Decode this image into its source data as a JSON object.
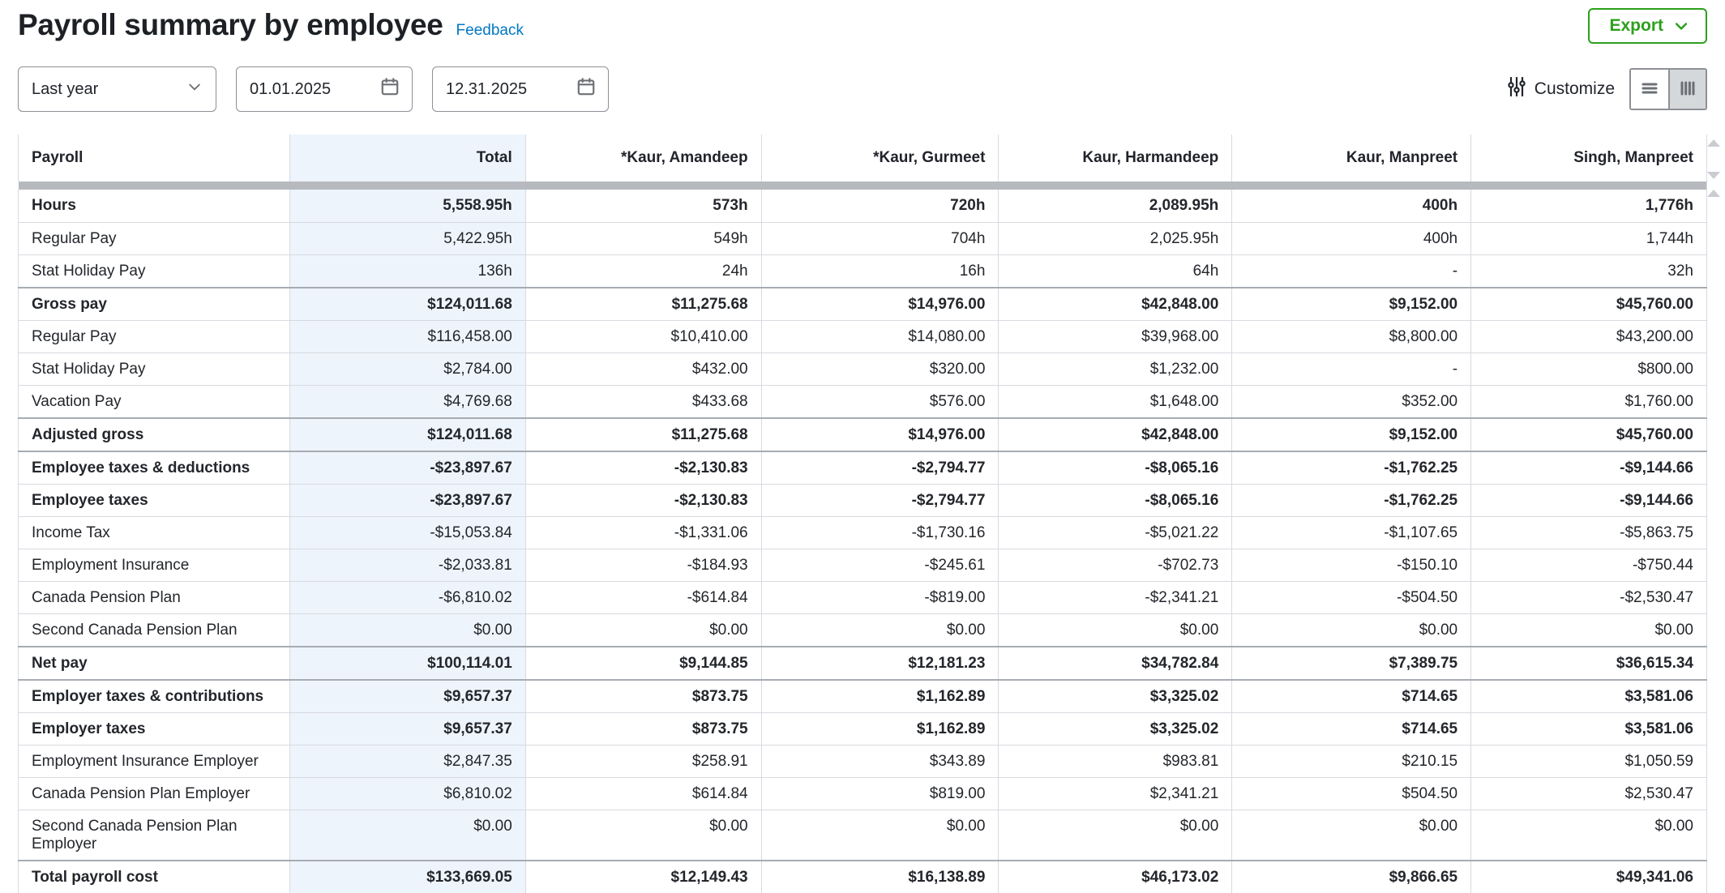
{
  "header": {
    "title": "Payroll summary by employee",
    "feedback": "Feedback",
    "export": "Export"
  },
  "filters": {
    "date_range": "Last year",
    "start_date": "01.01.2025",
    "end_date": "12.31.2025",
    "customize": "Customize"
  },
  "colors": {
    "accent_green": "#2ca01c",
    "link_blue": "#0077c5",
    "total_column_bg": "#eef4fc",
    "section_border": "#a7acb2",
    "row_border": "#d7dae0"
  },
  "table": {
    "row_header": "Payroll",
    "columns": [
      "Total",
      "*Kaur, Amandeep",
      "*Kaur, Gurmeet",
      "Kaur, Harmandeep",
      "Kaur, Manpreet",
      "Singh, Manpreet"
    ],
    "rows": [
      {
        "label": "Hours",
        "emphasis": true,
        "section_break": false,
        "values": [
          "5,558.95h",
          "573h",
          "720h",
          "2,089.95h",
          "400h",
          "1,776h"
        ]
      },
      {
        "label": "Regular Pay",
        "emphasis": false,
        "section_break": false,
        "values": [
          "5,422.95h",
          "549h",
          "704h",
          "2,025.95h",
          "400h",
          "1,744h"
        ]
      },
      {
        "label": "Stat Holiday Pay",
        "emphasis": false,
        "section_break": false,
        "values": [
          "136h",
          "24h",
          "16h",
          "64h",
          "-",
          "32h"
        ]
      },
      {
        "label": "Gross pay",
        "emphasis": true,
        "section_break": true,
        "values": [
          "$124,011.68",
          "$11,275.68",
          "$14,976.00",
          "$42,848.00",
          "$9,152.00",
          "$45,760.00"
        ]
      },
      {
        "label": "Regular Pay",
        "emphasis": false,
        "section_break": false,
        "values": [
          "$116,458.00",
          "$10,410.00",
          "$14,080.00",
          "$39,968.00",
          "$8,800.00",
          "$43,200.00"
        ]
      },
      {
        "label": "Stat Holiday Pay",
        "emphasis": false,
        "section_break": false,
        "values": [
          "$2,784.00",
          "$432.00",
          "$320.00",
          "$1,232.00",
          "-",
          "$800.00"
        ]
      },
      {
        "label": "Vacation Pay",
        "emphasis": false,
        "section_break": false,
        "values": [
          "$4,769.68",
          "$433.68",
          "$576.00",
          "$1,648.00",
          "$352.00",
          "$1,760.00"
        ]
      },
      {
        "label": "Adjusted gross",
        "emphasis": true,
        "section_break": true,
        "values": [
          "$124,011.68",
          "$11,275.68",
          "$14,976.00",
          "$42,848.00",
          "$9,152.00",
          "$45,760.00"
        ]
      },
      {
        "label": "Employee taxes & deductions",
        "emphasis": true,
        "section_break": true,
        "values": [
          "-$23,897.67",
          "-$2,130.83",
          "-$2,794.77",
          "-$8,065.16",
          "-$1,762.25",
          "-$9,144.66"
        ]
      },
      {
        "label": "Employee taxes",
        "emphasis": true,
        "section_break": false,
        "values": [
          "-$23,897.67",
          "-$2,130.83",
          "-$2,794.77",
          "-$8,065.16",
          "-$1,762.25",
          "-$9,144.66"
        ]
      },
      {
        "label": "Income Tax",
        "emphasis": false,
        "section_break": false,
        "values": [
          "-$15,053.84",
          "-$1,331.06",
          "-$1,730.16",
          "-$5,021.22",
          "-$1,107.65",
          "-$5,863.75"
        ]
      },
      {
        "label": "Employment Insurance",
        "emphasis": false,
        "section_break": false,
        "values": [
          "-$2,033.81",
          "-$184.93",
          "-$245.61",
          "-$702.73",
          "-$150.10",
          "-$750.44"
        ]
      },
      {
        "label": "Canada Pension Plan",
        "emphasis": false,
        "section_break": false,
        "values": [
          "-$6,810.02",
          "-$614.84",
          "-$819.00",
          "-$2,341.21",
          "-$504.50",
          "-$2,530.47"
        ]
      },
      {
        "label": "Second Canada Pension Plan",
        "emphasis": false,
        "section_break": false,
        "values": [
          "$0.00",
          "$0.00",
          "$0.00",
          "$0.00",
          "$0.00",
          "$0.00"
        ]
      },
      {
        "label": "Net pay",
        "emphasis": true,
        "section_break": true,
        "values": [
          "$100,114.01",
          "$9,144.85",
          "$12,181.23",
          "$34,782.84",
          "$7,389.75",
          "$36,615.34"
        ]
      },
      {
        "label": "Employer taxes & contributions",
        "emphasis": true,
        "section_break": true,
        "values": [
          "$9,657.37",
          "$873.75",
          "$1,162.89",
          "$3,325.02",
          "$714.65",
          "$3,581.06"
        ]
      },
      {
        "label": "Employer taxes",
        "emphasis": true,
        "section_break": false,
        "values": [
          "$9,657.37",
          "$873.75",
          "$1,162.89",
          "$3,325.02",
          "$714.65",
          "$3,581.06"
        ]
      },
      {
        "label": "Employment Insurance Employer",
        "emphasis": false,
        "section_break": false,
        "values": [
          "$2,847.35",
          "$258.91",
          "$343.89",
          "$983.81",
          "$210.15",
          "$1,050.59"
        ]
      },
      {
        "label": "Canada Pension Plan Employer",
        "emphasis": false,
        "section_break": false,
        "values": [
          "$6,810.02",
          "$614.84",
          "$819.00",
          "$2,341.21",
          "$504.50",
          "$2,530.47"
        ]
      },
      {
        "label": "Second Canada Pension Plan Employer",
        "emphasis": false,
        "section_break": false,
        "values": [
          "$0.00",
          "$0.00",
          "$0.00",
          "$0.00",
          "$0.00",
          "$0.00"
        ]
      },
      {
        "label": "Total payroll cost",
        "emphasis": true,
        "section_break": true,
        "values": [
          "$133,669.05",
          "$12,149.43",
          "$16,138.89",
          "$46,173.02",
          "$9,866.65",
          "$49,341.06"
        ]
      }
    ]
  }
}
